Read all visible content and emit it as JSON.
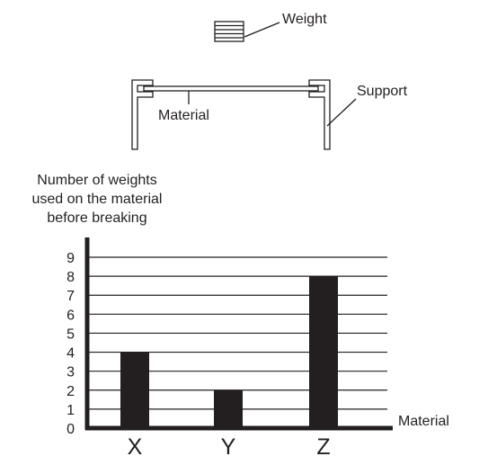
{
  "diagram": {
    "weight_label": "Weight",
    "support_label": "Support",
    "material_label": "Material"
  },
  "chart_data": {
    "type": "bar",
    "ylabel_lines": [
      "Number of weights",
      "used on the material",
      "before breaking"
    ],
    "xlabel": "Material",
    "categories": [
      "X",
      "Y",
      "Z"
    ],
    "values": [
      4,
      2,
      8
    ],
    "ylim": [
      0,
      9
    ],
    "yticks": [
      "0",
      "1",
      "2",
      "3",
      "4",
      "5",
      "6",
      "7",
      "8",
      "9"
    ],
    "grid": true,
    "bar_color": "#231f20"
  }
}
